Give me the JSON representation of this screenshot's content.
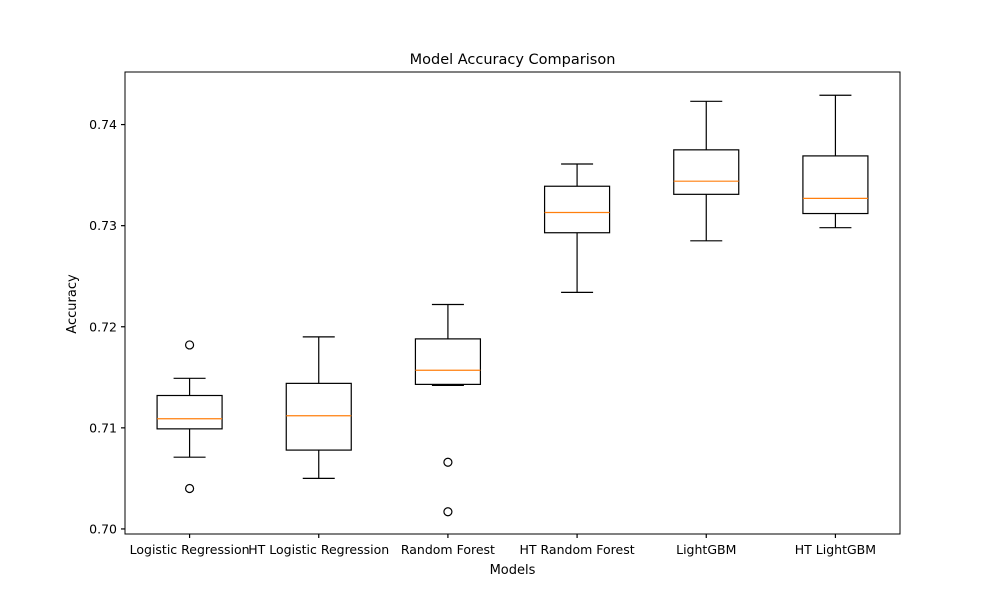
{
  "chart_data": {
    "type": "box",
    "title": "Model Accuracy Comparison",
    "xlabel": "Models",
    "ylabel": "Accuracy",
    "ylim": [
      0.6995,
      0.7452
    ],
    "yticks": [
      0.7,
      0.71,
      0.72,
      0.73,
      0.74
    ],
    "ytick_labels": [
      "0.70",
      "0.71",
      "0.72",
      "0.73",
      "0.74"
    ],
    "grid": false,
    "colors": {
      "box": "#000000",
      "median": "#ff7f0e",
      "flier": "#000000"
    },
    "categories": [
      "Logistic Regression",
      "HT Logistic Regression",
      "Random Forest",
      "HT Random Forest",
      "LightGBM",
      "HT LightGBM"
    ],
    "series": [
      {
        "whisker_low": 0.7071,
        "q1": 0.7099,
        "median": 0.7109,
        "q3": 0.7132,
        "whisker_high": 0.7149,
        "outliers": [
          0.7182,
          0.704
        ]
      },
      {
        "whisker_low": 0.705,
        "q1": 0.7078,
        "median": 0.7112,
        "q3": 0.7144,
        "whisker_high": 0.719,
        "outliers": []
      },
      {
        "whisker_low": 0.7142,
        "q1": 0.7143,
        "median": 0.7157,
        "q3": 0.7188,
        "whisker_high": 0.7222,
        "outliers": [
          0.7066,
          0.7017
        ]
      },
      {
        "whisker_low": 0.7234,
        "q1": 0.7293,
        "median": 0.7313,
        "q3": 0.7339,
        "whisker_high": 0.7361,
        "outliers": []
      },
      {
        "whisker_low": 0.7285,
        "q1": 0.7331,
        "median": 0.7344,
        "q3": 0.7375,
        "whisker_high": 0.7423,
        "outliers": []
      },
      {
        "whisker_low": 0.7298,
        "q1": 0.7312,
        "median": 0.7327,
        "q3": 0.7369,
        "whisker_high": 0.7429,
        "outliers": []
      }
    ]
  }
}
